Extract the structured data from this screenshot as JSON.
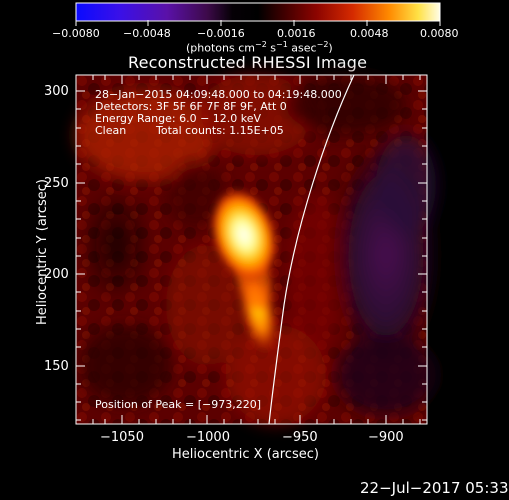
{
  "title": "Reconstructed RHESSI Image",
  "colorbar": {
    "ticks": [
      "−0.0080",
      "−0.0048",
      "−0.0016",
      "0.0016",
      "0.0048",
      "0.0080"
    ],
    "unit_label_prefix": "(photons cm",
    "unit_sup_1": "−2",
    "unit_mid": " s",
    "unit_sup_2": "−1",
    "unit_mid_2": " asec",
    "unit_sup_3": "−2",
    "unit_suffix": ")"
  },
  "overlay": {
    "line1": "28−Jan−2015 04:09:48.000 to 04:19:48.000",
    "line2": "Detectors: 3F 5F 6F 7F 8F 9F, Att 0",
    "line3": "Energy Range: 6.0 − 12.0 keV",
    "line4_left": "Clean",
    "line4_right": "Total counts: 1.15E+05",
    "peak": "Position of Peak = [−973,220]"
  },
  "axes": {
    "xlabel": "Heliocentric X (arcsec)",
    "ylabel": "Heliocentric Y (arcsec)",
    "xticks": [
      "−1050",
      "−1000",
      "−950",
      "−900"
    ],
    "yticks": [
      "300",
      "250",
      "200",
      "150"
    ]
  },
  "footer": {
    "date": "22−Jul−2017 05:33"
  },
  "colors": {
    "background": "#000000",
    "text": "#ffffff"
  }
}
